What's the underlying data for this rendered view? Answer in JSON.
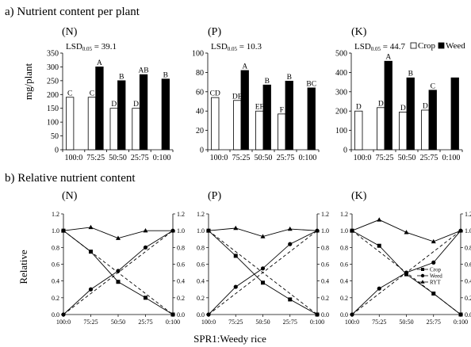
{
  "figure": {
    "section_a_title": "a) Nutrient content per plant",
    "section_b_title": "b) Relative nutrient content",
    "ylabel_a": "mg/plant",
    "ylabel_b": "Relative",
    "xlabel_b": "SPR1:Weedy rice",
    "lsd_prefix": "LSD",
    "lsd_sub": "0.05",
    "legend_a": [
      "Crop",
      "Weed"
    ],
    "legend_b": [
      "Crop",
      "Weed",
      "RYT"
    ]
  },
  "chart_data": [
    {
      "type": "bar",
      "panel": "(N)",
      "lsd": "= 39.1",
      "categories": [
        "100:0",
        "75:25",
        "50:50",
        "25:75",
        "0:100"
      ],
      "ylim": [
        0,
        350
      ],
      "yticks": [
        0,
        50,
        100,
        150,
        200,
        250,
        300,
        350
      ],
      "series": [
        {
          "name": "Crop",
          "values": [
            190,
            190,
            150,
            150,
            null
          ]
        },
        {
          "name": "Weed",
          "values": [
            null,
            300,
            250,
            272,
            256
          ]
        }
      ],
      "labels": {
        "Crop": [
          "C",
          "C",
          "D",
          "D",
          null
        ],
        "Weed": [
          null,
          "A",
          "B",
          "AB",
          "B"
        ]
      }
    },
    {
      "type": "bar",
      "panel": "(P)",
      "lsd": "= 10.3",
      "categories": [
        "100:0",
        "75:25",
        "50:50",
        "25:75",
        "0:100"
      ],
      "ylim": [
        0,
        100
      ],
      "yticks": [
        0,
        20,
        40,
        60,
        80,
        100
      ],
      "series": [
        {
          "name": "Crop",
          "values": [
            54,
            51,
            40,
            37,
            null
          ]
        },
        {
          "name": "Weed",
          "values": [
            null,
            82,
            67,
            71,
            64
          ]
        }
      ],
      "labels": {
        "Crop": [
          "CD",
          "DE",
          "EF",
          "F",
          null
        ],
        "Weed": [
          null,
          "A",
          "B",
          "B",
          "BC"
        ]
      }
    },
    {
      "type": "bar",
      "panel": "(K)",
      "lsd": "= 44.7",
      "categories": [
        "100:0",
        "75:25",
        "50:50",
        "25:75",
        "0:100"
      ],
      "ylim": [
        0,
        500
      ],
      "yticks": [
        0,
        100,
        200,
        300,
        400,
        500
      ],
      "series": [
        {
          "name": "Crop",
          "values": [
            200,
            218,
            195,
            205,
            null
          ]
        },
        {
          "name": "Weed",
          "values": [
            null,
            458,
            372,
            308,
            372
          ]
        }
      ],
      "labels": {
        "Crop": [
          "D",
          "D",
          "D",
          "D",
          null
        ],
        "Weed": [
          null,
          "A",
          "B",
          "C",
          null
        ]
      }
    },
    {
      "type": "line",
      "panel": "(N)",
      "categories": [
        "100:0",
        "75:25",
        "50:50",
        "25:75",
        "0:100"
      ],
      "ylim": [
        0,
        1.2
      ],
      "yticks": [
        "0.0",
        "0.2",
        "0.4",
        "0.6",
        "0.8",
        "1.0",
        "1.2"
      ],
      "series": [
        {
          "name": "Crop",
          "marker": "square",
          "values": [
            1.0,
            0.75,
            0.39,
            0.2,
            0.0
          ]
        },
        {
          "name": "Weed",
          "marker": "circle",
          "values": [
            0.0,
            0.3,
            0.52,
            0.8,
            1.0
          ]
        },
        {
          "name": "RYT",
          "marker": "triangle",
          "values": [
            1.0,
            1.04,
            0.91,
            1.0,
            1.0
          ]
        }
      ],
      "reference_lines": "dashed"
    },
    {
      "type": "line",
      "panel": "(P)",
      "categories": [
        "100:0",
        "75:25",
        "50:50",
        "25:75",
        "0:100"
      ],
      "ylim": [
        0,
        1.2
      ],
      "yticks": [
        "0.0",
        "0.2",
        "0.4",
        "0.6",
        "0.8",
        "1.0",
        "1.2"
      ],
      "series": [
        {
          "name": "Crop",
          "marker": "square",
          "values": [
            1.0,
            0.7,
            0.38,
            0.18,
            0.0
          ]
        },
        {
          "name": "Weed",
          "marker": "circle",
          "values": [
            0.0,
            0.33,
            0.55,
            0.84,
            1.0
          ]
        },
        {
          "name": "RYT",
          "marker": "triangle",
          "values": [
            1.0,
            1.03,
            0.93,
            1.02,
            1.0
          ]
        }
      ],
      "reference_lines": "dashed"
    },
    {
      "type": "line",
      "panel": "(K)",
      "categories": [
        "100:0",
        "75:25",
        "50:50",
        "25:75",
        "0:100"
      ],
      "ylim": [
        0,
        1.2
      ],
      "yticks": [
        "0.0",
        "0.2",
        "0.4",
        "0.6",
        "0.8",
        "1.0",
        "1.2"
      ],
      "series": [
        {
          "name": "Crop",
          "marker": "square",
          "values": [
            1.0,
            0.82,
            0.48,
            0.25,
            0.0
          ]
        },
        {
          "name": "Weed",
          "marker": "circle",
          "values": [
            0.0,
            0.31,
            0.5,
            0.62,
            1.0
          ]
        },
        {
          "name": "RYT",
          "marker": "triangle",
          "values": [
            1.0,
            1.13,
            0.98,
            0.87,
            1.0
          ]
        }
      ],
      "reference_lines": "dashed",
      "legend_position": "bottom-right"
    }
  ]
}
